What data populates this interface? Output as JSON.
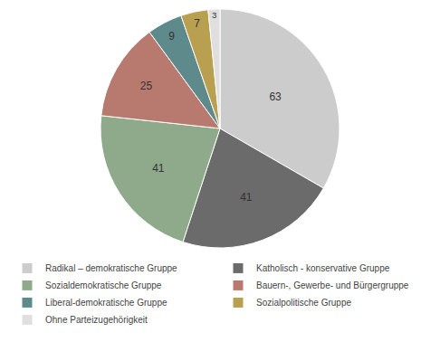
{
  "chart_data": {
    "type": "pie",
    "categories": [
      "Radikal – demokratische Gruppe",
      "Katholisch - konservative Gruppe",
      "Sozialdemokratische Gruppe",
      "Bauern-, Gewerbe- und Bürgergruppe",
      "Liberal-demokratische Gruppe",
      "Sozialpolitische Gruppe",
      "Ohne Parteizugehörigkeit"
    ],
    "values": [
      63,
      41,
      41,
      25,
      9,
      7,
      3
    ],
    "colors": [
      "#cccccc",
      "#6b6b6b",
      "#8faa8b",
      "#b87a6e",
      "#5f8a8b",
      "#b8a050",
      "#e0dede"
    ],
    "data_labels": true,
    "legend": "bottom"
  }
}
